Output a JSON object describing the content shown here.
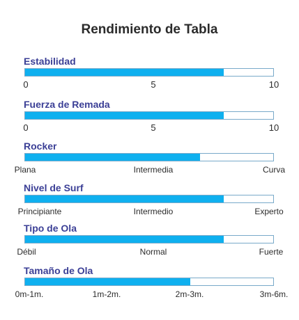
{
  "title": "Rendimiento de Tabla",
  "colors": {
    "bar_fill": "#0fb0ef",
    "bar_border": "#78a9c9",
    "label": "#3b3f96"
  },
  "metrics": [
    {
      "label": "Estabilidad",
      "value_fraction": 0.8,
      "scale": [
        "0",
        "5",
        "10"
      ]
    },
    {
      "label": "Fuerza de Remada",
      "value_fraction": 0.8,
      "scale": [
        "0",
        "5",
        "10"
      ]
    },
    {
      "label": "Rocker",
      "value_fraction": 0.705,
      "scale": [
        "Plana",
        "Intermedia",
        "Curva"
      ]
    },
    {
      "label": "Nivel de Surf",
      "value_fraction": 0.8,
      "scale": [
        "Principiante",
        "Intermedio",
        "Experto"
      ]
    },
    {
      "label": "Tipo de Ola",
      "value_fraction": 0.8,
      "scale": [
        "Débil",
        "Normal",
        "Fuerte"
      ]
    },
    {
      "label": "Tamaño de Ola",
      "value_fraction": 0.665,
      "scale": [
        "0m-1m.",
        "1m-2m.",
        "2m-3m.",
        "3m-6m."
      ]
    }
  ]
}
